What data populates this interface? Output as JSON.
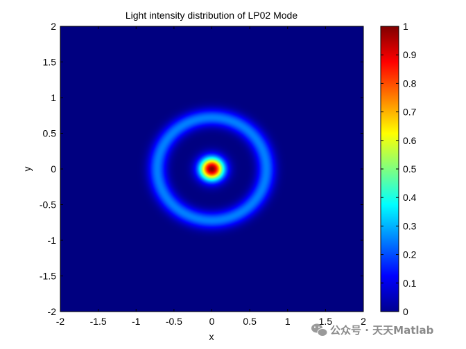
{
  "chart_data": {
    "type": "heatmap",
    "title": "Light intensity distribution of LP02 Mode",
    "xlabel": "x",
    "ylabel": "y",
    "xlim": [
      -2,
      2
    ],
    "ylim": [
      -2,
      2
    ],
    "xticks": [
      -2,
      -1.5,
      -1,
      -0.5,
      0,
      0.5,
      1,
      1.5,
      2
    ],
    "yticks": [
      -2,
      -1.5,
      -1,
      -0.5,
      0,
      0.5,
      1,
      1.5,
      2
    ],
    "xtick_labels": [
      "-2",
      "-1.5",
      "-1",
      "-0.5",
      "0",
      "0.5",
      "1",
      "1.5",
      "2"
    ],
    "ytick_labels": [
      "-2",
      "-1.5",
      "-1",
      "-0.5",
      "0",
      "0.5",
      "1",
      "1.5",
      "2"
    ],
    "colormap": "jet",
    "clim": [
      0,
      1
    ],
    "colorbar_ticks": [
      0,
      0.1,
      0.2,
      0.3,
      0.4,
      0.5,
      0.6,
      0.7,
      0.8,
      0.9,
      1
    ],
    "colorbar_labels": [
      "0",
      "0.1",
      "0.2",
      "0.3",
      "0.4",
      "0.5",
      "0.6",
      "0.7",
      "0.8",
      "0.9",
      "1"
    ],
    "features": {
      "central_peak": {
        "center": [
          0,
          0
        ],
        "peak_intensity": 1.0,
        "radius": 0.15
      },
      "dark_ring": {
        "radius": 0.42,
        "intensity": 0.0
      },
      "outer_ring": {
        "radius": 0.72,
        "peak_intensity": 0.25
      }
    },
    "grid": false,
    "colorbar_position": "right"
  },
  "watermark": {
    "text": "公众号 · 天天Matlab",
    "icon": "wechat-icon"
  },
  "colors": {
    "background": "#ffffff",
    "axes": "#000000",
    "watermark": "#8a8a8a"
  }
}
